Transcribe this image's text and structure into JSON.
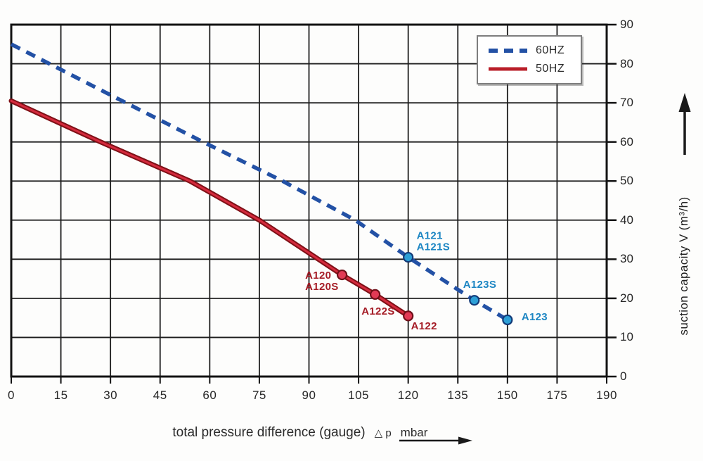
{
  "chart_data": {
    "type": "line",
    "title": "",
    "xlabel": "total pressure difference (gauge)",
    "xlabel_symbol": "△ p",
    "xlabel_unit": "mbar",
    "ylabel": "suction capacity V (m³/h)",
    "x_ticks": [
      0,
      15,
      30,
      45,
      60,
      75,
      90,
      105,
      120,
      135,
      150,
      175,
      190
    ],
    "y_ticks": [
      90,
      80,
      70,
      60,
      50,
      40,
      30,
      20,
      10,
      0
    ],
    "ylim": [
      0,
      90
    ],
    "grid": true,
    "legend_position": "top-right",
    "colors": {
      "grid": "#1d1d1d",
      "border": "#121212",
      "tick_text": "#262626",
      "blue_line": "#2351a5",
      "red_line_edge": "#7f1016",
      "red_line_core": "#d42a3d",
      "blue_marker_fill": "#2d9fd6",
      "blue_marker_stroke": "#123a78",
      "red_marker_fill": "#e23a55",
      "red_marker_stroke": "#6f0f18",
      "blue_label": "#1d86c3",
      "red_label": "#a51c26"
    },
    "series": [
      {
        "name": "60HZ",
        "style": "dashed",
        "color": "#2351a5",
        "points": [
          [
            0,
            85
          ],
          [
            30,
            72
          ],
          [
            58,
            60
          ],
          [
            82,
            50
          ],
          [
            104,
            40
          ],
          [
            120,
            30.5
          ],
          [
            140,
            19.5
          ],
          [
            150,
            14.5
          ]
        ],
        "markers": [
          [
            120,
            30.5
          ],
          [
            140,
            19.5
          ],
          [
            150,
            14.5
          ]
        ],
        "marker_fill": "#2d9fd6",
        "marker_stroke": "#123a78"
      },
      {
        "name": "50HZ",
        "style": "solid",
        "color": "#b91e28",
        "points": [
          [
            0,
            70.5
          ],
          [
            27,
            60
          ],
          [
            54,
            50
          ],
          [
            75,
            40
          ],
          [
            100,
            26
          ],
          [
            110,
            21
          ],
          [
            120,
            15.5
          ]
        ],
        "markers": [
          [
            100,
            26
          ],
          [
            110,
            21
          ],
          [
            120,
            15.5
          ]
        ],
        "marker_fill": "#e23a55",
        "marker_stroke": "#6f0f18"
      }
    ],
    "annotations": [
      {
        "text": "A121\nA121S",
        "x": 120,
        "y": 30.5,
        "placement": "above-right",
        "color": "#1d86c3"
      },
      {
        "text": "A123S",
        "x": 140,
        "y": 19.5,
        "placement": "above-left",
        "color": "#1d86c3"
      },
      {
        "text": "A123",
        "x": 150,
        "y": 14.5,
        "placement": "right",
        "color": "#1d86c3"
      },
      {
        "text": "A120\nA120S",
        "x": 100,
        "y": 26,
        "placement": "left",
        "color": "#a51c26"
      },
      {
        "text": "A122S",
        "x": 110,
        "y": 21,
        "placement": "below-left",
        "color": "#a51c26"
      },
      {
        "text": "A122",
        "x": 120,
        "y": 15.5,
        "placement": "below-right",
        "color": "#a51c26"
      }
    ]
  }
}
